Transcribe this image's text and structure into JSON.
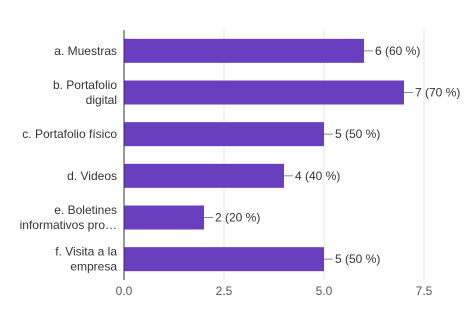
{
  "chart_data": {
    "type": "bar",
    "orientation": "horizontal",
    "title": "",
    "xlabel": "",
    "ylabel": "",
    "categories": [
      [
        "a. Muestras"
      ],
      [
        "b. Portafolio",
        "digital"
      ],
      [
        "c. Portafolio físico"
      ],
      [
        "d. Videos"
      ],
      [
        "e. Boletines",
        "informativos pro…"
      ],
      [
        "f. Visita a la",
        "empresa"
      ]
    ],
    "values": [
      6,
      7,
      5,
      4,
      2,
      5
    ],
    "data_labels": [
      "6 (60 %)",
      "7 (70 %)",
      "5 (50 %)",
      "4 (40 %)",
      "2 (20 %)",
      "5 (50 %)"
    ],
    "xlim": [
      0,
      7.5
    ],
    "xticks": [
      0,
      2.5,
      5,
      7.5
    ],
    "xtick_labels": [
      "0.0",
      "2.5",
      "5.0",
      "7.5"
    ],
    "grid": true,
    "legend": "none",
    "colors": {
      "bar": "#6a3fbf",
      "grid": "#e6e6e6",
      "axis": "#333333",
      "connector": "#888888"
    }
  }
}
